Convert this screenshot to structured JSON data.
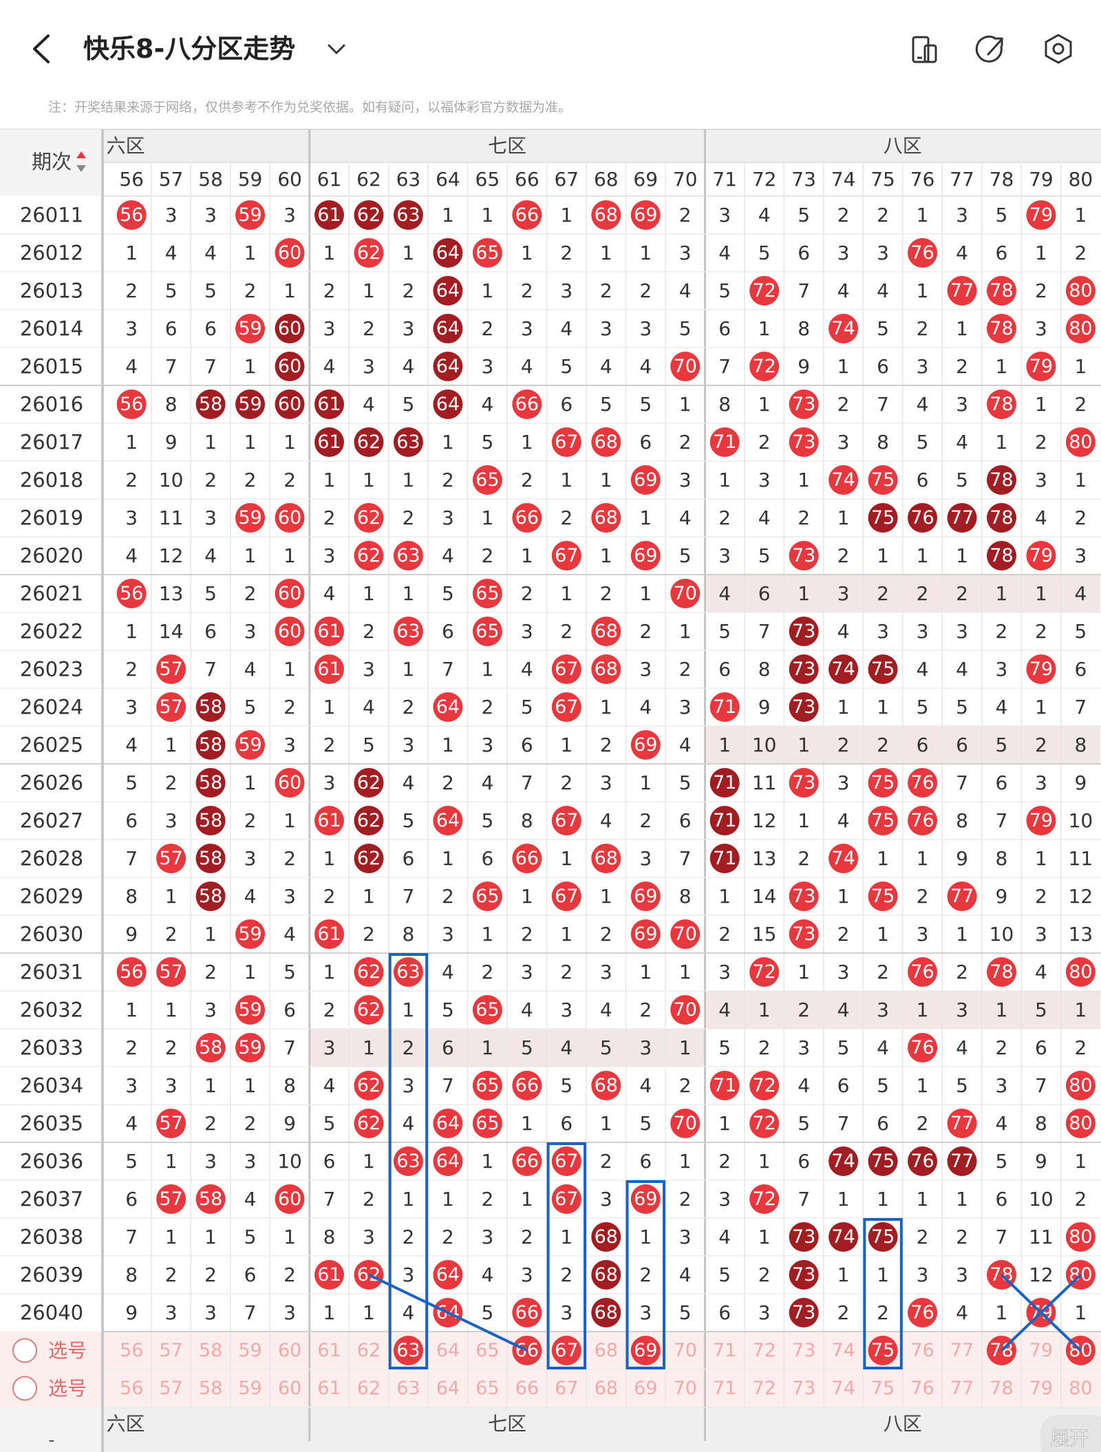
{
  "header": {
    "title": "快乐8-八分区走势"
  },
  "note": "注：开奖结果来源于网络，仅供参考不作为兑奖依据。如有疑问，以福体彩官方数据为准。",
  "colors": {
    "ball": "#e8383d",
    "ball_dark": "#a11d22",
    "annotation": "#1b63c0"
  },
  "table": {
    "issue_header": "期次",
    "zones": [
      "六区",
      "七区",
      "八区"
    ],
    "columns": [
      56,
      57,
      58,
      59,
      60,
      61,
      62,
      63,
      64,
      65,
      66,
      67,
      68,
      69,
      70,
      71,
      72,
      73,
      74,
      75,
      76,
      77,
      78,
      79,
      80
    ],
    "rows": [
      {
        "issue": "26011",
        "values": [
          56,
          3,
          3,
          59,
          3,
          61,
          62,
          63,
          1,
          1,
          66,
          1,
          68,
          69,
          2,
          3,
          4,
          5,
          2,
          2,
          1,
          3,
          5,
          79,
          1
        ],
        "dark": [
          61,
          62,
          63
        ]
      },
      {
        "issue": "26012",
        "values": [
          1,
          4,
          4,
          1,
          60,
          1,
          62,
          1,
          64,
          65,
          1,
          2,
          1,
          1,
          3,
          4,
          5,
          6,
          3,
          3,
          76,
          4,
          6,
          1,
          2
        ],
        "dark": [
          64
        ]
      },
      {
        "issue": "26013",
        "values": [
          2,
          5,
          5,
          2,
          1,
          2,
          1,
          2,
          64,
          1,
          2,
          3,
          2,
          2,
          4,
          5,
          72,
          7,
          4,
          4,
          1,
          77,
          78,
          2,
          80
        ],
        "dark": [
          64
        ]
      },
      {
        "issue": "26014",
        "values": [
          3,
          6,
          6,
          59,
          60,
          3,
          2,
          3,
          64,
          2,
          3,
          4,
          3,
          3,
          5,
          6,
          1,
          8,
          74,
          5,
          2,
          1,
          78,
          3,
          80
        ],
        "dark": [
          60,
          64
        ]
      },
      {
        "issue": "26015",
        "values": [
          4,
          7,
          7,
          1,
          60,
          4,
          3,
          4,
          64,
          3,
          4,
          5,
          4,
          4,
          70,
          7,
          72,
          9,
          1,
          6,
          3,
          2,
          1,
          79,
          1
        ],
        "dark": [
          60,
          64
        ]
      },
      {
        "issue": "26016",
        "values": [
          56,
          8,
          58,
          59,
          60,
          61,
          4,
          5,
          64,
          4,
          66,
          6,
          5,
          5,
          1,
          8,
          1,
          73,
          2,
          7,
          4,
          3,
          78,
          1,
          2
        ],
        "dark": [
          58,
          59,
          60,
          61,
          64
        ]
      },
      {
        "issue": "26017",
        "values": [
          1,
          9,
          1,
          1,
          1,
          61,
          62,
          63,
          1,
          5,
          1,
          67,
          68,
          6,
          2,
          71,
          2,
          73,
          3,
          8,
          5,
          4,
          1,
          2,
          80
        ],
        "dark": [
          61,
          62,
          63
        ]
      },
      {
        "issue": "26018",
        "values": [
          2,
          10,
          2,
          2,
          2,
          1,
          1,
          1,
          2,
          65,
          2,
          1,
          1,
          69,
          3,
          1,
          3,
          1,
          74,
          75,
          6,
          5,
          78,
          3,
          1
        ],
        "dark": [
          78
        ]
      },
      {
        "issue": "26019",
        "values": [
          3,
          11,
          3,
          59,
          60,
          2,
          62,
          2,
          3,
          1,
          66,
          2,
          68,
          1,
          4,
          2,
          4,
          2,
          1,
          75,
          76,
          77,
          78,
          4,
          2
        ],
        "dark": [
          75,
          76,
          77,
          78
        ]
      },
      {
        "issue": "26020",
        "values": [
          4,
          12,
          4,
          1,
          1,
          3,
          62,
          63,
          4,
          2,
          1,
          67,
          1,
          69,
          5,
          3,
          5,
          73,
          2,
          1,
          1,
          1,
          78,
          79,
          3
        ],
        "dark": [
          78
        ]
      },
      {
        "issue": "26021",
        "values": [
          56,
          13,
          5,
          2,
          60,
          4,
          1,
          1,
          5,
          65,
          2,
          1,
          2,
          1,
          70,
          4,
          6,
          1,
          3,
          2,
          2,
          2,
          1,
          1,
          4
        ]
      },
      {
        "issue": "26022",
        "values": [
          1,
          14,
          6,
          3,
          60,
          61,
          2,
          63,
          6,
          65,
          3,
          2,
          68,
          2,
          1,
          5,
          7,
          73,
          4,
          3,
          3,
          3,
          2,
          2,
          5
        ],
        "dark": [
          73
        ]
      },
      {
        "issue": "26023",
        "values": [
          2,
          57,
          7,
          4,
          1,
          61,
          3,
          1,
          7,
          1,
          4,
          67,
          68,
          3,
          2,
          6,
          8,
          73,
          74,
          75,
          4,
          4,
          3,
          79,
          6
        ],
        "dark": [
          73,
          74,
          75
        ]
      },
      {
        "issue": "26024",
        "values": [
          3,
          57,
          58,
          5,
          2,
          1,
          4,
          2,
          64,
          2,
          5,
          67,
          1,
          4,
          3,
          71,
          9,
          73,
          1,
          1,
          5,
          5,
          4,
          1,
          7
        ],
        "dark": [
          58,
          73
        ]
      },
      {
        "issue": "26025",
        "values": [
          4,
          1,
          58,
          59,
          3,
          2,
          5,
          3,
          1,
          3,
          6,
          1,
          2,
          69,
          4,
          1,
          10,
          1,
          2,
          2,
          6,
          6,
          5,
          2,
          8
        ],
        "dark": [
          58
        ]
      },
      {
        "issue": "26026",
        "values": [
          5,
          2,
          58,
          1,
          60,
          3,
          62,
          4,
          2,
          4,
          7,
          2,
          3,
          1,
          5,
          71,
          11,
          73,
          3,
          75,
          76,
          7,
          6,
          3,
          9
        ],
        "dark": [
          58,
          62,
          71
        ]
      },
      {
        "issue": "26027",
        "values": [
          6,
          3,
          58,
          2,
          1,
          61,
          62,
          5,
          64,
          5,
          8,
          67,
          4,
          2,
          6,
          71,
          12,
          1,
          4,
          75,
          76,
          8,
          7,
          79,
          10
        ],
        "dark": [
          58,
          62,
          71
        ]
      },
      {
        "issue": "26028",
        "values": [
          7,
          57,
          58,
          3,
          2,
          1,
          62,
          6,
          1,
          6,
          66,
          1,
          68,
          3,
          7,
          71,
          13,
          2,
          74,
          1,
          1,
          9,
          8,
          1,
          11
        ],
        "dark": [
          58,
          62,
          71
        ]
      },
      {
        "issue": "26029",
        "values": [
          8,
          1,
          58,
          4,
          3,
          2,
          1,
          7,
          2,
          65,
          1,
          67,
          1,
          69,
          8,
          1,
          14,
          73,
          1,
          75,
          2,
          77,
          9,
          2,
          12
        ],
        "dark": [
          58
        ]
      },
      {
        "issue": "26030",
        "values": [
          9,
          2,
          1,
          59,
          4,
          61,
          2,
          8,
          3,
          1,
          2,
          1,
          2,
          69,
          70,
          2,
          15,
          73,
          2,
          1,
          3,
          1,
          10,
          3,
          13
        ]
      },
      {
        "issue": "26031",
        "values": [
          56,
          57,
          2,
          1,
          5,
          1,
          62,
          63,
          4,
          2,
          3,
          2,
          3,
          1,
          1,
          3,
          72,
          1,
          3,
          2,
          76,
          2,
          78,
          4,
          80
        ]
      },
      {
        "issue": "26032",
        "values": [
          1,
          1,
          3,
          59,
          6,
          2,
          62,
          1,
          5,
          65,
          4,
          3,
          4,
          2,
          70,
          4,
          1,
          2,
          4,
          3,
          1,
          3,
          1,
          5,
          1
        ]
      },
      {
        "issue": "26033",
        "values": [
          2,
          2,
          58,
          59,
          7,
          3,
          1,
          2,
          6,
          1,
          5,
          4,
          5,
          3,
          1,
          5,
          2,
          3,
          5,
          4,
          76,
          4,
          2,
          6,
          2
        ]
      },
      {
        "issue": "26034",
        "values": [
          3,
          3,
          1,
          1,
          8,
          4,
          62,
          3,
          7,
          65,
          66,
          5,
          68,
          4,
          2,
          71,
          72,
          4,
          6,
          5,
          1,
          5,
          3,
          7,
          80
        ]
      },
      {
        "issue": "26035",
        "values": [
          4,
          57,
          2,
          2,
          9,
          5,
          62,
          4,
          64,
          65,
          1,
          6,
          1,
          5,
          70,
          1,
          72,
          5,
          7,
          6,
          2,
          77,
          4,
          8,
          80
        ]
      },
      {
        "issue": "26036",
        "values": [
          5,
          1,
          3,
          3,
          10,
          6,
          1,
          63,
          64,
          1,
          66,
          67,
          2,
          6,
          1,
          2,
          1,
          6,
          74,
          75,
          76,
          77,
          5,
          9,
          1
        ],
        "dark": [
          74,
          75,
          76,
          77
        ]
      },
      {
        "issue": "26037",
        "values": [
          6,
          57,
          58,
          4,
          60,
          7,
          2,
          1,
          1,
          2,
          1,
          67,
          3,
          69,
          2,
          3,
          72,
          7,
          1,
          1,
          1,
          1,
          6,
          10,
          2
        ]
      },
      {
        "issue": "26038",
        "values": [
          7,
          1,
          1,
          5,
          1,
          8,
          3,
          2,
          2,
          3,
          2,
          1,
          68,
          1,
          3,
          4,
          1,
          73,
          74,
          75,
          2,
          2,
          7,
          11,
          80
        ],
        "dark": [
          68,
          73,
          74,
          75
        ]
      },
      {
        "issue": "26039",
        "values": [
          8,
          2,
          2,
          6,
          2,
          61,
          62,
          3,
          64,
          4,
          3,
          2,
          68,
          2,
          4,
          5,
          2,
          73,
          1,
          1,
          3,
          3,
          78,
          12,
          80
        ],
        "dark": [
          68,
          73
        ]
      },
      {
        "issue": "26040",
        "values": [
          9,
          3,
          3,
          7,
          3,
          1,
          1,
          4,
          64,
          5,
          66,
          3,
          68,
          3,
          5,
          6,
          3,
          73,
          2,
          2,
          76,
          4,
          1,
          79,
          1
        ],
        "dark": [
          68,
          73
        ]
      }
    ],
    "pick_rows": [
      {
        "label": "选号",
        "picked": [
          63,
          66,
          67,
          69,
          75,
          78,
          80
        ]
      },
      {
        "label": "选号"
      }
    ]
  },
  "expand_button": "展开",
  "footer_mark": "-"
}
